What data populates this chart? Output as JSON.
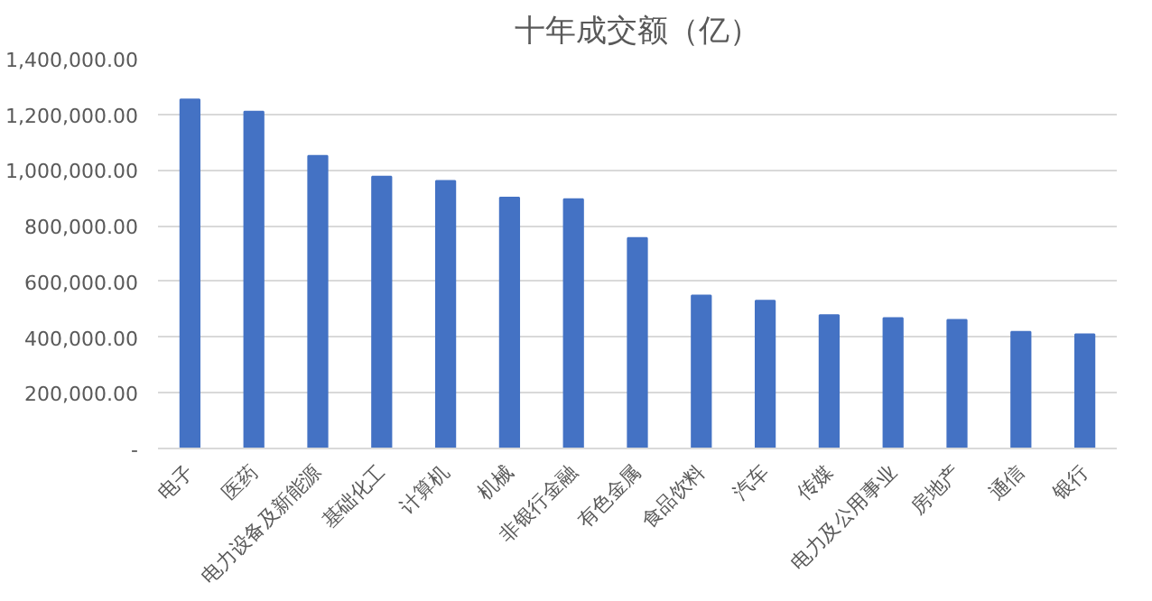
{
  "chart_data": {
    "type": "bar",
    "title": "十年成交额（亿）",
    "categories": [
      "电子",
      "医药",
      "电力设备及新能源",
      "基础化工",
      "计算机",
      "机械",
      "非银行金融",
      "有色金属",
      "食品饮料",
      "汽车",
      "传媒",
      "电力及公用事业",
      "房地产",
      "通信",
      "银行"
    ],
    "values": [
      1253000,
      1210000,
      1051000,
      976000,
      961000,
      901000,
      895000,
      756000,
      549000,
      531000,
      479000,
      468000,
      462000,
      419000,
      410000
    ],
    "color": "#4472c4",
    "ylim": [
      0,
      1400000
    ],
    "yticks": [
      {
        "value": 0,
        "label": "-"
      },
      {
        "value": 200000,
        "label": "200,000.00"
      },
      {
        "value": 400000,
        "label": "400,000.00"
      },
      {
        "value": 600000,
        "label": "600,000.00"
      },
      {
        "value": 800000,
        "label": "800,000.00"
      },
      {
        "value": 1000000,
        "label": "1,000,000.00"
      },
      {
        "value": 1200000,
        "label": "1,200,000.00"
      },
      {
        "value": 1400000,
        "label": "1,400,000.00"
      }
    ],
    "grid": "y"
  }
}
